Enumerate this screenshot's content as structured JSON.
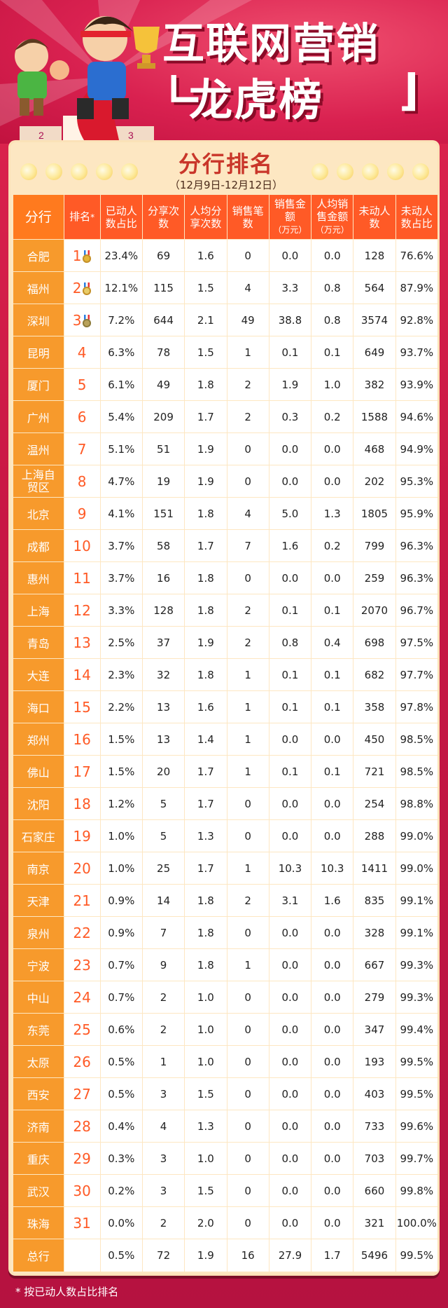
{
  "header": {
    "title_line1": "互联网营销",
    "title_line2": "龙虎榜"
  },
  "section": {
    "title": "分行排名",
    "date_range": "（12月9日-12月12日）"
  },
  "columns": [
    {
      "label": "分行",
      "sub": ""
    },
    {
      "label": "排名",
      "sub": "*"
    },
    {
      "label": "已动人数占比",
      "sub": ""
    },
    {
      "label": "分享次数",
      "sub": ""
    },
    {
      "label": "人均分享次数",
      "sub": ""
    },
    {
      "label": "销售笔数",
      "sub": ""
    },
    {
      "label": "销售金额",
      "sub": "（万元）"
    },
    {
      "label": "人均销售金额",
      "sub": "（万元）"
    },
    {
      "label": "未动人数",
      "sub": ""
    },
    {
      "label": "未动人数占比",
      "sub": ""
    }
  ],
  "rows": [
    [
      "合肥",
      "1",
      "23.4%",
      "69",
      "1.6",
      "0",
      "0.0",
      "0.0",
      "128",
      "76.6%"
    ],
    [
      "福州",
      "2",
      "12.1%",
      "115",
      "1.5",
      "4",
      "3.3",
      "0.8",
      "564",
      "87.9%"
    ],
    [
      "深圳",
      "3",
      "7.2%",
      "644",
      "2.1",
      "49",
      "38.8",
      "0.8",
      "3574",
      "92.8%"
    ],
    [
      "昆明",
      "4",
      "6.3%",
      "78",
      "1.5",
      "1",
      "0.1",
      "0.1",
      "649",
      "93.7%"
    ],
    [
      "厦门",
      "5",
      "6.1%",
      "49",
      "1.8",
      "2",
      "1.9",
      "1.0",
      "382",
      "93.9%"
    ],
    [
      "广州",
      "6",
      "5.4%",
      "209",
      "1.7",
      "2",
      "0.3",
      "0.2",
      "1588",
      "94.6%"
    ],
    [
      "温州",
      "7",
      "5.1%",
      "51",
      "1.9",
      "0",
      "0.0",
      "0.0",
      "468",
      "94.9%"
    ],
    [
      "上海自贸区",
      "8",
      "4.7%",
      "19",
      "1.9",
      "0",
      "0.0",
      "0.0",
      "202",
      "95.3%"
    ],
    [
      "北京",
      "9",
      "4.1%",
      "151",
      "1.8",
      "4",
      "5.0",
      "1.3",
      "1805",
      "95.9%"
    ],
    [
      "成都",
      "10",
      "3.7%",
      "58",
      "1.7",
      "7",
      "1.6",
      "0.2",
      "799",
      "96.3%"
    ],
    [
      "惠州",
      "11",
      "3.7%",
      "16",
      "1.8",
      "0",
      "0.0",
      "0.0",
      "259",
      "96.3%"
    ],
    [
      "上海",
      "12",
      "3.3%",
      "128",
      "1.8",
      "2",
      "0.1",
      "0.1",
      "2070",
      "96.7%"
    ],
    [
      "青岛",
      "13",
      "2.5%",
      "37",
      "1.9",
      "2",
      "0.8",
      "0.4",
      "698",
      "97.5%"
    ],
    [
      "大连",
      "14",
      "2.3%",
      "32",
      "1.8",
      "1",
      "0.1",
      "0.1",
      "682",
      "97.7%"
    ],
    [
      "海口",
      "15",
      "2.2%",
      "13",
      "1.6",
      "1",
      "0.1",
      "0.1",
      "358",
      "97.8%"
    ],
    [
      "郑州",
      "16",
      "1.5%",
      "13",
      "1.4",
      "1",
      "0.0",
      "0.0",
      "450",
      "98.5%"
    ],
    [
      "佛山",
      "17",
      "1.5%",
      "20",
      "1.7",
      "1",
      "0.1",
      "0.1",
      "721",
      "98.5%"
    ],
    [
      "沈阳",
      "18",
      "1.2%",
      "5",
      "1.7",
      "0",
      "0.0",
      "0.0",
      "254",
      "98.8%"
    ],
    [
      "石家庄",
      "19",
      "1.0%",
      "5",
      "1.3",
      "0",
      "0.0",
      "0.0",
      "288",
      "99.0%"
    ],
    [
      "南京",
      "20",
      "1.0%",
      "25",
      "1.7",
      "1",
      "10.3",
      "10.3",
      "1411",
      "99.0%"
    ],
    [
      "天津",
      "21",
      "0.9%",
      "14",
      "1.8",
      "2",
      "3.1",
      "1.6",
      "835",
      "99.1%"
    ],
    [
      "泉州",
      "22",
      "0.9%",
      "7",
      "1.8",
      "0",
      "0.0",
      "0.0",
      "328",
      "99.1%"
    ],
    [
      "宁波",
      "23",
      "0.7%",
      "9",
      "1.8",
      "1",
      "0.0",
      "0.0",
      "667",
      "99.3%"
    ],
    [
      "中山",
      "24",
      "0.7%",
      "2",
      "1.0",
      "0",
      "0.0",
      "0.0",
      "279",
      "99.3%"
    ],
    [
      "东莞",
      "25",
      "0.6%",
      "2",
      "1.0",
      "0",
      "0.0",
      "0.0",
      "347",
      "99.4%"
    ],
    [
      "太原",
      "26",
      "0.5%",
      "1",
      "1.0",
      "0",
      "0.0",
      "0.0",
      "193",
      "99.5%"
    ],
    [
      "西安",
      "27",
      "0.5%",
      "3",
      "1.5",
      "0",
      "0.0",
      "0.0",
      "403",
      "99.5%"
    ],
    [
      "济南",
      "28",
      "0.4%",
      "4",
      "1.3",
      "0",
      "0.0",
      "0.0",
      "733",
      "99.6%"
    ],
    [
      "重庆",
      "29",
      "0.3%",
      "3",
      "1.0",
      "0",
      "0.0",
      "0.0",
      "703",
      "99.7%"
    ],
    [
      "武汉",
      "30",
      "0.2%",
      "3",
      "1.5",
      "0",
      "0.0",
      "0.0",
      "660",
      "99.8%"
    ],
    [
      "珠海",
      "31",
      "0.0%",
      "2",
      "2.0",
      "0",
      "0.0",
      "0.0",
      "321",
      "100.0%"
    ]
  ],
  "total": [
    "总行",
    "",
    "0.5%",
    "72",
    "1.9",
    "16",
    "27.9",
    "1.7",
    "5496",
    "99.5%"
  ],
  "medals": [
    "gold-medal-icon",
    "silver-medal-icon",
    "bronze-medal-icon"
  ],
  "footnote": "* 按已动人数占比排名",
  "colors": {
    "header_orange": "#ff5a26",
    "city_orange": "#f79a2c",
    "card_cream": "#fde7c2",
    "banner_red": "#d92150"
  }
}
